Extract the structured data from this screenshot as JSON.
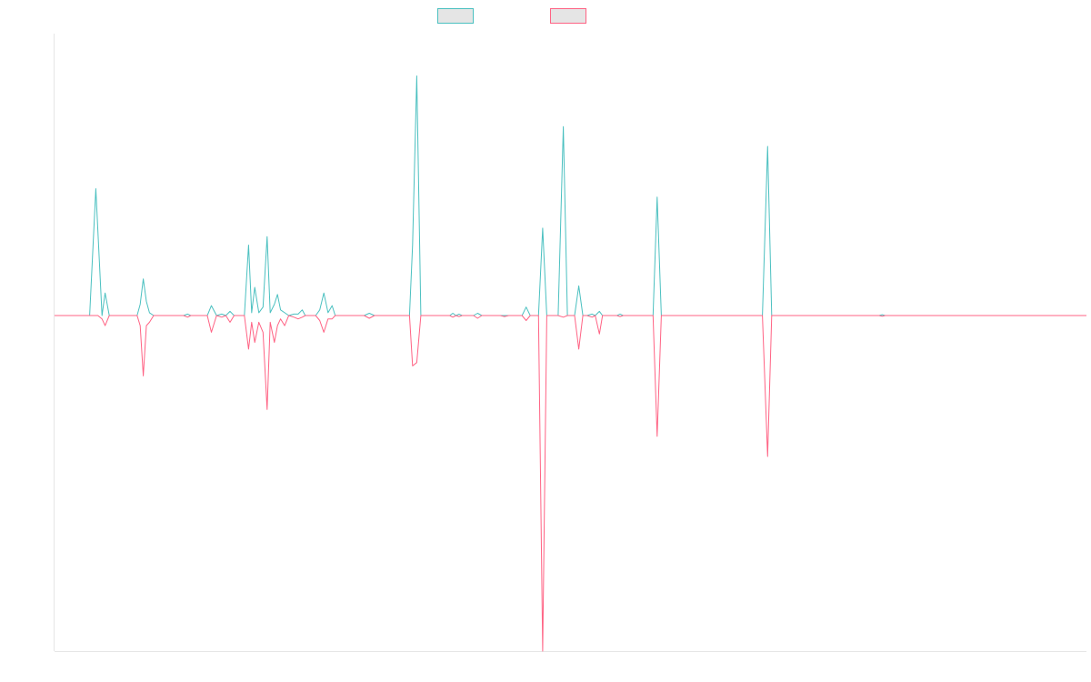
{
  "chart_data": {
    "type": "line",
    "title": "",
    "xlabel": "",
    "ylabel": "",
    "grid": false,
    "legend_position": "top-center",
    "ylim": [
      -100,
      100
    ],
    "series": [
      {
        "color": "#4bc0c0",
        "legend_fill": "#e5e5e5",
        "points": [
          [
            0,
            0
          ],
          [
            3.4,
            0
          ],
          [
            4.0,
            45
          ],
          [
            4.6,
            0
          ],
          [
            4.9,
            8
          ],
          [
            5.3,
            0
          ],
          [
            8.0,
            0
          ],
          [
            8.3,
            4
          ],
          [
            8.6,
            13
          ],
          [
            8.9,
            5
          ],
          [
            9.2,
            1
          ],
          [
            9.6,
            0
          ],
          [
            12.5,
            0
          ],
          [
            12.9,
            0.5
          ],
          [
            13.2,
            0
          ],
          [
            14.8,
            0
          ],
          [
            15.2,
            3.5
          ],
          [
            15.7,
            0
          ],
          [
            16.2,
            0.5
          ],
          [
            16.6,
            0
          ],
          [
            17.0,
            1.5
          ],
          [
            17.4,
            0
          ],
          [
            17.8,
            0
          ],
          [
            18.4,
            0
          ],
          [
            18.8,
            25
          ],
          [
            19.1,
            1
          ],
          [
            19.4,
            10
          ],
          [
            19.8,
            1
          ],
          [
            20.2,
            3
          ],
          [
            20.6,
            28
          ],
          [
            20.9,
            1
          ],
          [
            21.3,
            4
          ],
          [
            21.6,
            7.5
          ],
          [
            21.9,
            2
          ],
          [
            22.3,
            1
          ],
          [
            22.7,
            0
          ],
          [
            23.2,
            0.5
          ],
          [
            23.6,
            0.5
          ],
          [
            24.0,
            2
          ],
          [
            24.3,
            0
          ],
          [
            25.3,
            0
          ],
          [
            25.7,
            2
          ],
          [
            26.1,
            8
          ],
          [
            26.5,
            1
          ],
          [
            26.9,
            3.5
          ],
          [
            27.2,
            0
          ],
          [
            28.2,
            0
          ],
          [
            29.4,
            0
          ],
          [
            30.0,
            0
          ],
          [
            30.5,
            0.8
          ],
          [
            31.0,
            0
          ],
          [
            34.0,
            0
          ],
          [
            34.4,
            0
          ],
          [
            34.7,
            25
          ],
          [
            35.1,
            85
          ],
          [
            35.5,
            0
          ],
          [
            38.3,
            0
          ],
          [
            38.6,
            0.8
          ],
          [
            38.9,
            0
          ],
          [
            39.2,
            0.5
          ],
          [
            39.5,
            0
          ],
          [
            40.6,
            0
          ],
          [
            41.0,
            0.8
          ],
          [
            41.4,
            0
          ],
          [
            43.2,
            0
          ],
          [
            43.6,
            0
          ],
          [
            44.0,
            0
          ],
          [
            45.3,
            0
          ],
          [
            45.7,
            3
          ],
          [
            46.1,
            0
          ],
          [
            46.9,
            0
          ],
          [
            47.3,
            31
          ],
          [
            47.7,
            0
          ],
          [
            48.8,
            0
          ],
          [
            49.3,
            67
          ],
          [
            49.7,
            0
          ],
          [
            50.4,
            0
          ],
          [
            50.8,
            10.5
          ],
          [
            51.2,
            0
          ],
          [
            51.6,
            0
          ],
          [
            52.1,
            0.5
          ],
          [
            52.4,
            0
          ],
          [
            52.8,
            1.5
          ],
          [
            53.1,
            0
          ],
          [
            54.5,
            0
          ],
          [
            54.8,
            0.5
          ],
          [
            55.1,
            0
          ],
          [
            58.0,
            0
          ],
          [
            58.4,
            42
          ],
          [
            58.8,
            0
          ],
          [
            68.6,
            0
          ],
          [
            69.1,
            60
          ],
          [
            69.5,
            0
          ],
          [
            79.9,
            0
          ],
          [
            80.2,
            0.3
          ],
          [
            80.5,
            0
          ],
          [
            100,
            0
          ]
        ]
      },
      {
        "color": "#ff6384",
        "legend_fill": "#e5e5e5",
        "points": [
          [
            0,
            0
          ],
          [
            3.4,
            0
          ],
          [
            4.2,
            0
          ],
          [
            4.6,
            -1
          ],
          [
            4.9,
            -3
          ],
          [
            5.3,
            0
          ],
          [
            8.0,
            0
          ],
          [
            8.3,
            -3
          ],
          [
            8.6,
            -18
          ],
          [
            8.9,
            -3
          ],
          [
            9.2,
            -2
          ],
          [
            9.6,
            0
          ],
          [
            12.5,
            0
          ],
          [
            12.9,
            -0.5
          ],
          [
            13.2,
            0
          ],
          [
            14.8,
            0
          ],
          [
            15.2,
            -5
          ],
          [
            15.7,
            0
          ],
          [
            16.2,
            -0.5
          ],
          [
            16.6,
            0
          ],
          [
            17.0,
            -2
          ],
          [
            17.4,
            0
          ],
          [
            17.8,
            0
          ],
          [
            18.4,
            0
          ],
          [
            18.8,
            -10
          ],
          [
            19.1,
            -2
          ],
          [
            19.4,
            -8
          ],
          [
            19.8,
            -2
          ],
          [
            20.2,
            -5
          ],
          [
            20.6,
            -28
          ],
          [
            20.9,
            -2
          ],
          [
            21.3,
            -8
          ],
          [
            21.6,
            -3
          ],
          [
            21.9,
            -1
          ],
          [
            22.3,
            -3
          ],
          [
            22.7,
            0
          ],
          [
            23.2,
            -0.5
          ],
          [
            23.6,
            -1
          ],
          [
            24.0,
            -0.5
          ],
          [
            24.3,
            0
          ],
          [
            25.3,
            0
          ],
          [
            25.7,
            -1.5
          ],
          [
            26.1,
            -5
          ],
          [
            26.5,
            -1
          ],
          [
            26.9,
            -1
          ],
          [
            27.2,
            0
          ],
          [
            28.2,
            0
          ],
          [
            29.4,
            0
          ],
          [
            30.0,
            0
          ],
          [
            30.5,
            -0.8
          ],
          [
            31.0,
            0
          ],
          [
            34.0,
            0
          ],
          [
            34.4,
            0
          ],
          [
            34.7,
            -15
          ],
          [
            35.1,
            -14
          ],
          [
            35.5,
            0
          ],
          [
            38.3,
            0
          ],
          [
            38.6,
            -0.5
          ],
          [
            38.9,
            0
          ],
          [
            39.2,
            -0.3
          ],
          [
            39.5,
            0
          ],
          [
            40.6,
            0
          ],
          [
            41.0,
            -0.8
          ],
          [
            41.4,
            0
          ],
          [
            43.2,
            0
          ],
          [
            43.6,
            -0.3
          ],
          [
            44.0,
            0
          ],
          [
            45.3,
            0
          ],
          [
            45.7,
            -1.5
          ],
          [
            46.1,
            0
          ],
          [
            46.9,
            0
          ],
          [
            47.3,
            -100
          ],
          [
            47.7,
            0
          ],
          [
            48.8,
            0
          ],
          [
            49.3,
            -0.5
          ],
          [
            49.7,
            0
          ],
          [
            50.4,
            0
          ],
          [
            50.8,
            -10
          ],
          [
            51.2,
            0
          ],
          [
            51.6,
            0
          ],
          [
            52.1,
            -0.5
          ],
          [
            52.4,
            0
          ],
          [
            52.8,
            -5.5
          ],
          [
            53.1,
            0
          ],
          [
            54.5,
            0
          ],
          [
            54.8,
            -0.3
          ],
          [
            55.1,
            0
          ],
          [
            58.0,
            0
          ],
          [
            58.4,
            -36
          ],
          [
            58.8,
            0
          ],
          [
            68.6,
            0
          ],
          [
            69.1,
            -42
          ],
          [
            69.5,
            0
          ],
          [
            79.9,
            0
          ],
          [
            80.2,
            -0.2
          ],
          [
            80.5,
            0
          ],
          [
            100,
            0
          ]
        ]
      }
    ]
  }
}
